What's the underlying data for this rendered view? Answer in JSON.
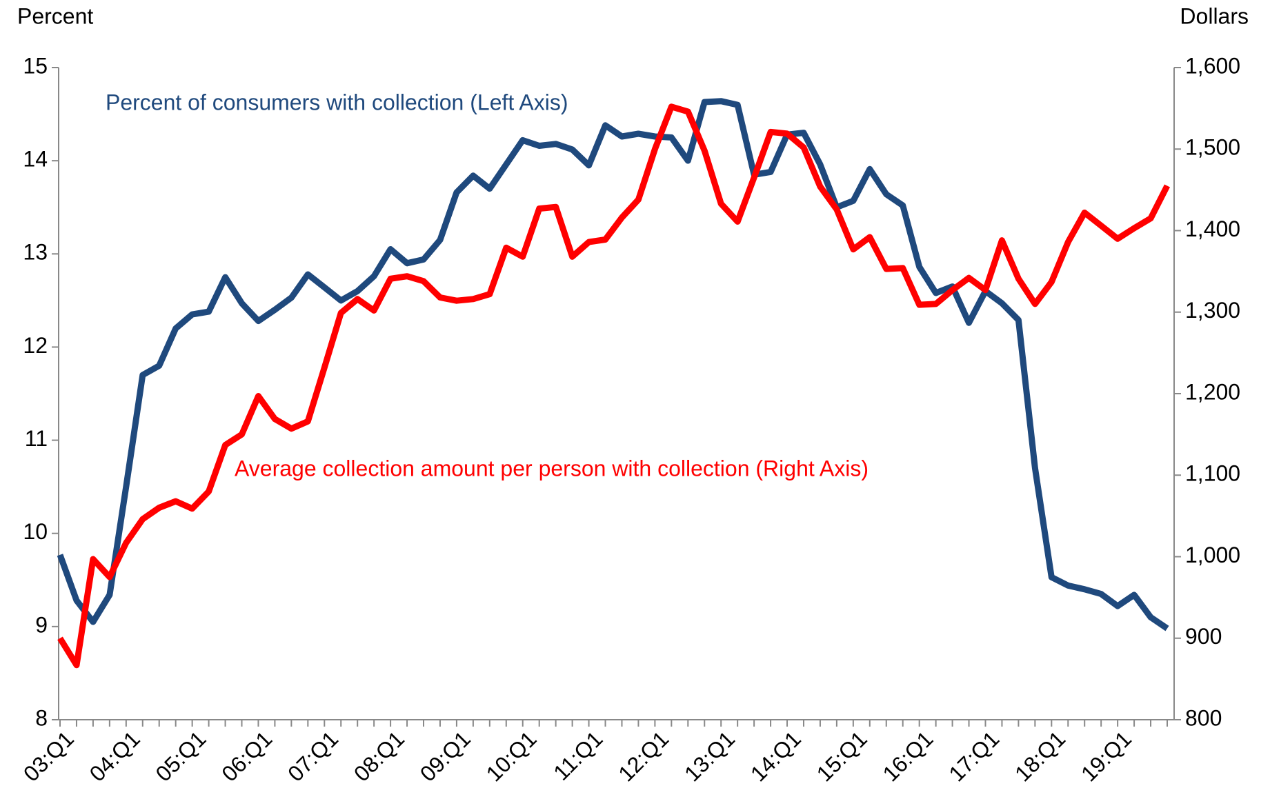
{
  "chart_data": {
    "type": "line",
    "y_label": "Percent",
    "y2_label": "Dollars",
    "annotations": [
      "Percent of consumers with collection (Left Axis)",
      "Average collection amount per person with collection (Right Axis)"
    ],
    "categories": [
      "03:Q1",
      null,
      null,
      null,
      "04:Q1",
      null,
      null,
      null,
      "05:Q1",
      null,
      null,
      null,
      "06:Q1",
      null,
      null,
      null,
      "07:Q1",
      null,
      null,
      null,
      "08:Q1",
      null,
      null,
      null,
      "09:Q1",
      null,
      null,
      null,
      "10:Q1",
      null,
      null,
      null,
      "11:Q1",
      null,
      null,
      null,
      "12:Q1",
      null,
      null,
      null,
      "13:Q1",
      null,
      null,
      null,
      "14:Q1",
      null,
      null,
      null,
      "15:Q1",
      null,
      null,
      null,
      "16:Q1",
      null,
      null,
      null,
      "17:Q1",
      null,
      null,
      null,
      "18:Q1",
      null,
      null,
      null,
      "19:Q1",
      null,
      null,
      null
    ],
    "series": [
      {
        "name": "Percent of consumers with collection (Left Axis)",
        "color": "#1f497d",
        "axis": "y",
        "values": [
          9.77,
          9.28,
          9.05,
          9.34,
          10.5,
          11.7,
          11.8,
          12.2,
          12.35,
          12.38,
          12.75,
          12.47,
          12.28,
          12.4,
          12.53,
          12.78,
          12.64,
          12.5,
          12.6,
          12.76,
          13.05,
          12.9,
          12.94,
          13.15,
          13.66,
          13.84,
          13.7,
          13.96,
          14.22,
          14.16,
          14.18,
          14.12,
          13.95,
          14.38,
          14.26,
          14.29,
          14.26,
          14.25,
          14.0,
          14.63,
          14.64,
          14.6,
          13.85,
          13.88,
          14.28,
          14.3,
          13.96,
          13.5,
          13.57,
          13.91,
          13.64,
          13.52,
          12.86,
          12.58,
          12.65,
          12.26,
          12.6,
          12.47,
          12.29,
          10.7,
          9.53,
          9.44,
          9.4,
          9.35,
          9.22,
          9.34,
          9.1,
          8.98
        ]
      },
      {
        "name": "Average collection amount per person with collection (Right Axis)",
        "color": "#ff0000",
        "axis": "y2",
        "values": [
          900,
          867,
          997,
          975,
          1017,
          1046,
          1060,
          1068,
          1059,
          1080,
          1137,
          1150,
          1197,
          1169,
          1157,
          1166,
          1232,
          1299,
          1316,
          1302,
          1341,
          1344,
          1338,
          1318,
          1314,
          1316,
          1322,
          1379,
          1368,
          1427,
          1429,
          1368,
          1386,
          1389,
          1416,
          1438,
          1500,
          1552,
          1546,
          1498,
          1433,
          1411,
          1465,
          1521,
          1519,
          1502,
          1454,
          1426,
          1377,
          1392,
          1353,
          1354,
          1309,
          1310,
          1327,
          1342,
          1327,
          1388,
          1341,
          1310,
          1337,
          1386,
          1422,
          1406,
          1390,
          1403,
          1415,
          1455
        ]
      }
    ],
    "ylim": [
      8,
      15
    ],
    "yticks": [
      8,
      9,
      10,
      11,
      12,
      13,
      14,
      15
    ],
    "y2lim": [
      800,
      1600
    ],
    "y2ticks": [
      800,
      900,
      {
        "value": 1000,
        "label": "1,000"
      },
      {
        "value": 1100,
        "label": "1,100"
      },
      {
        "value": 1200,
        "label": "1,200"
      },
      {
        "value": 1300,
        "label": "1,300"
      },
      {
        "value": 1400,
        "label": "1,400"
      },
      {
        "value": 1500,
        "label": "1,500"
      },
      {
        "value": 1600,
        "label": "1,600"
      }
    ],
    "grid": false
  }
}
